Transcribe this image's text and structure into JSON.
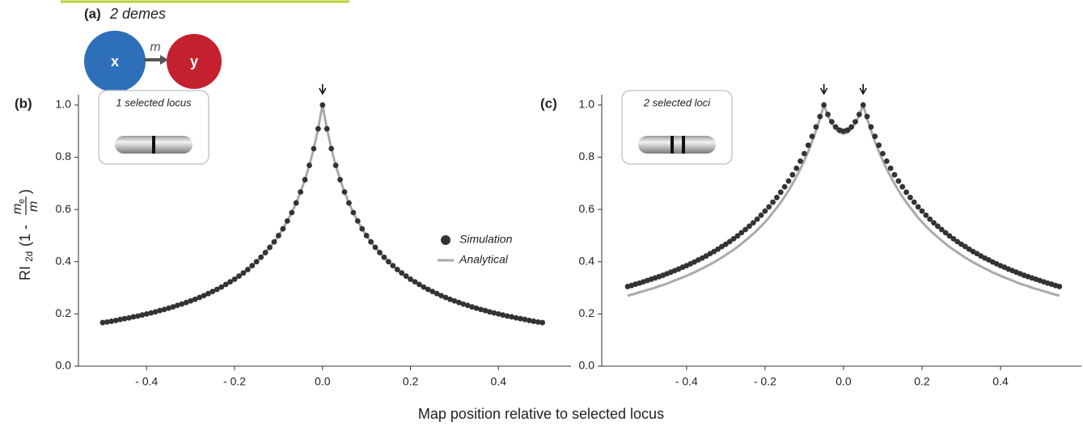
{
  "panel_a": {
    "label": "(a)",
    "title": "2 demes",
    "nodes": [
      "x",
      "y"
    ],
    "edge_label": "m"
  },
  "x_label": "Map position relative to selected locus",
  "chart_data": [
    {
      "type": "line",
      "panel_label": "(b)",
      "inset_label": "1 selected locus",
      "selected_loci": [
        0
      ],
      "y_label": {
        "main": "RI",
        "sub": "2d",
        "open": "(1 -",
        "num": "m",
        "num_sub": "e",
        "den": "m",
        "close": ")"
      },
      "legend": "right",
      "x": [
        -0.5,
        -0.49,
        -0.48,
        -0.47,
        -0.46,
        -0.45,
        -0.44,
        -0.43,
        -0.42,
        -0.41,
        -0.4,
        -0.39,
        -0.38,
        -0.37,
        -0.36,
        -0.35,
        -0.34,
        -0.33,
        -0.32,
        -0.31,
        -0.3,
        -0.29,
        -0.28,
        -0.27,
        -0.26,
        -0.25,
        -0.24,
        -0.23,
        -0.22,
        -0.21,
        -0.2,
        -0.19,
        -0.18,
        -0.17,
        -0.16,
        -0.15,
        -0.14,
        -0.13,
        -0.12,
        -0.11,
        -0.1,
        -0.09,
        -0.08,
        -0.07,
        -0.06,
        -0.05,
        -0.04,
        -0.03,
        -0.02,
        -0.01,
        0,
        0.01,
        0.02,
        0.03,
        0.04,
        0.05,
        0.06,
        0.07,
        0.08,
        0.09,
        0.1,
        0.11,
        0.12,
        0.13,
        0.14,
        0.15,
        0.16,
        0.17,
        0.18,
        0.19,
        0.2,
        0.21,
        0.22,
        0.23,
        0.24,
        0.25,
        0.26,
        0.27,
        0.28,
        0.29,
        0.3,
        0.31,
        0.32,
        0.33,
        0.34,
        0.35,
        0.36,
        0.37,
        0.38,
        0.39,
        0.4,
        0.41,
        0.42,
        0.43,
        0.44,
        0.45,
        0.46,
        0.47,
        0.48,
        0.49,
        0.5
      ],
      "series": [
        {
          "name": "Simulation",
          "color": "#333333",
          "style": "markers",
          "values": [
            0.167,
            0.169,
            0.172,
            0.175,
            0.179,
            0.182,
            0.185,
            0.189,
            0.192,
            0.196,
            0.2,
            0.204,
            0.208,
            0.213,
            0.217,
            0.222,
            0.227,
            0.233,
            0.238,
            0.244,
            0.25,
            0.256,
            0.263,
            0.27,
            0.278,
            0.286,
            0.294,
            0.303,
            0.313,
            0.323,
            0.333,
            0.345,
            0.357,
            0.37,
            0.385,
            0.4,
            0.417,
            0.435,
            0.455,
            0.476,
            0.5,
            0.526,
            0.556,
            0.588,
            0.625,
            0.667,
            0.714,
            0.769,
            0.833,
            0.909,
            1,
            0.909,
            0.833,
            0.769,
            0.714,
            0.667,
            0.625,
            0.588,
            0.556,
            0.526,
            0.5,
            0.476,
            0.455,
            0.435,
            0.417,
            0.4,
            0.385,
            0.37,
            0.357,
            0.345,
            0.333,
            0.323,
            0.313,
            0.303,
            0.294,
            0.286,
            0.278,
            0.27,
            0.263,
            0.256,
            0.25,
            0.244,
            0.238,
            0.233,
            0.227,
            0.222,
            0.217,
            0.213,
            0.208,
            0.204,
            0.2,
            0.196,
            0.192,
            0.189,
            0.185,
            0.182,
            0.179,
            0.175,
            0.172,
            0.169,
            0.167
          ]
        },
        {
          "name": "Analytical",
          "color": "#aaaaaa",
          "style": "line",
          "values": [
            0.167,
            0.169,
            0.172,
            0.175,
            0.179,
            0.182,
            0.185,
            0.189,
            0.192,
            0.196,
            0.2,
            0.204,
            0.208,
            0.213,
            0.217,
            0.222,
            0.227,
            0.233,
            0.238,
            0.244,
            0.25,
            0.256,
            0.263,
            0.27,
            0.278,
            0.286,
            0.294,
            0.303,
            0.313,
            0.323,
            0.333,
            0.345,
            0.357,
            0.37,
            0.385,
            0.4,
            0.417,
            0.435,
            0.455,
            0.476,
            0.5,
            0.526,
            0.556,
            0.588,
            0.625,
            0.667,
            0.714,
            0.769,
            0.833,
            0.909,
            1,
            0.909,
            0.833,
            0.769,
            0.714,
            0.667,
            0.625,
            0.588,
            0.556,
            0.526,
            0.5,
            0.476,
            0.455,
            0.435,
            0.417,
            0.4,
            0.385,
            0.37,
            0.357,
            0.345,
            0.333,
            0.323,
            0.313,
            0.303,
            0.294,
            0.286,
            0.278,
            0.27,
            0.263,
            0.256,
            0.25,
            0.244,
            0.238,
            0.233,
            0.227,
            0.222,
            0.217,
            0.213,
            0.208,
            0.204,
            0.2,
            0.196,
            0.192,
            0.189,
            0.185,
            0.182,
            0.179,
            0.175,
            0.172,
            0.169,
            0.167
          ]
        }
      ],
      "xlim": [
        -0.555,
        0.565
      ],
      "xticks": [
        {
          "value": -0.4,
          "label": "- 0.4"
        },
        {
          "value": -0.2,
          "label": "- 0.2"
        },
        {
          "value": 0,
          "label": "0.0"
        },
        0.2,
        0.4
      ],
      "ylim": [
        0,
        1.04
      ],
      "yticks": [
        {
          "value": 0,
          "label": "0.0"
        },
        0.2,
        0.4,
        0.6,
        0.8,
        {
          "value": 1,
          "label": "1.0"
        }
      ]
    },
    {
      "type": "line",
      "panel_label": "(c)",
      "inset_label": "2 selected loci",
      "selected_loci": [
        -0.05,
        0.05
      ],
      "x": [
        -0.55,
        -0.54,
        -0.53,
        -0.52,
        -0.51,
        -0.5,
        -0.49,
        -0.48,
        -0.47,
        -0.46,
        -0.45,
        -0.44,
        -0.43,
        -0.42,
        -0.41,
        -0.4,
        -0.39,
        -0.38,
        -0.37,
        -0.36,
        -0.35,
        -0.34,
        -0.33,
        -0.32,
        -0.31,
        -0.3,
        -0.29,
        -0.28,
        -0.27,
        -0.26,
        -0.25,
        -0.24,
        -0.23,
        -0.22,
        -0.21,
        -0.2,
        -0.19,
        -0.18,
        -0.17,
        -0.16,
        -0.15,
        -0.14,
        -0.13,
        -0.12,
        -0.11,
        -0.1,
        -0.09,
        -0.08,
        -0.07,
        -0.06,
        -0.05,
        -0.04,
        -0.03,
        -0.02,
        -0.01,
        0,
        0.01,
        0.02,
        0.03,
        0.04,
        0.05,
        0.06,
        0.07,
        0.08,
        0.09,
        0.1,
        0.11,
        0.12,
        0.13,
        0.14,
        0.15,
        0.16,
        0.17,
        0.18,
        0.19,
        0.2,
        0.21,
        0.22,
        0.23,
        0.24,
        0.25,
        0.26,
        0.27,
        0.28,
        0.29,
        0.3,
        0.31,
        0.32,
        0.33,
        0.34,
        0.35,
        0.36,
        0.37,
        0.38,
        0.39,
        0.4,
        0.41,
        0.42,
        0.43,
        0.44,
        0.45,
        0.46,
        0.47,
        0.48,
        0.49,
        0.5,
        0.51,
        0.52,
        0.53,
        0.54,
        0.55
      ],
      "series": [
        {
          "color": "#333333",
          "style": "markers",
          "values": [
            0.305,
            0.309,
            0.314,
            0.318,
            0.323,
            0.328,
            0.333,
            0.338,
            0.343,
            0.348,
            0.354,
            0.36,
            0.366,
            0.372,
            0.379,
            0.385,
            0.392,
            0.399,
            0.407,
            0.414,
            0.422,
            0.431,
            0.439,
            0.448,
            0.458,
            0.467,
            0.477,
            0.488,
            0.499,
            0.511,
            0.523,
            0.536,
            0.549,
            0.563,
            0.578,
            0.594,
            0.61,
            0.628,
            0.646,
            0.666,
            0.687,
            0.709,
            0.733,
            0.758,
            0.785,
            0.814,
            0.846,
            0.88,
            0.916,
            0.956,
            1,
            0.964,
            0.936,
            0.916,
            0.904,
            0.9,
            0.904,
            0.916,
            0.936,
            0.964,
            1,
            0.956,
            0.916,
            0.88,
            0.846,
            0.814,
            0.785,
            0.758,
            0.733,
            0.709,
            0.687,
            0.666,
            0.646,
            0.628,
            0.61,
            0.594,
            0.578,
            0.563,
            0.549,
            0.536,
            0.523,
            0.511,
            0.499,
            0.488,
            0.477,
            0.467,
            0.458,
            0.448,
            0.439,
            0.431,
            0.422,
            0.414,
            0.407,
            0.399,
            0.392,
            0.385,
            0.379,
            0.372,
            0.366,
            0.36,
            0.354,
            0.348,
            0.343,
            0.338,
            0.333,
            0.328,
            0.323,
            0.318,
            0.314,
            0.309,
            0.305
          ]
        },
        {
          "color": "#aaaaaa",
          "style": "line",
          "values": [
            0.27,
            0.274,
            0.278,
            0.283,
            0.287,
            0.292,
            0.296,
            0.301,
            0.306,
            0.311,
            0.316,
            0.322,
            0.328,
            0.334,
            0.34,
            0.346,
            0.353,
            0.359,
            0.367,
            0.374,
            0.382,
            0.39,
            0.398,
            0.407,
            0.416,
            0.426,
            0.436,
            0.446,
            0.457,
            0.469,
            0.481,
            0.494,
            0.507,
            0.521,
            0.536,
            0.552,
            0.569,
            0.588,
            0.607,
            0.627,
            0.649,
            0.673,
            0.698,
            0.726,
            0.755,
            0.787,
            0.822,
            0.861,
            0.903,
            0.949,
            1,
            0.96,
            0.93,
            0.908,
            0.894,
            0.89,
            0.894,
            0.908,
            0.93,
            0.96,
            1,
            0.949,
            0.903,
            0.861,
            0.822,
            0.787,
            0.755,
            0.726,
            0.698,
            0.673,
            0.649,
            0.627,
            0.607,
            0.588,
            0.569,
            0.552,
            0.536,
            0.521,
            0.507,
            0.494,
            0.481,
            0.469,
            0.457,
            0.446,
            0.436,
            0.426,
            0.416,
            0.407,
            0.398,
            0.39,
            0.382,
            0.374,
            0.367,
            0.359,
            0.353,
            0.346,
            0.34,
            0.334,
            0.328,
            0.322,
            0.316,
            0.311,
            0.306,
            0.301,
            0.296,
            0.292,
            0.287,
            0.283,
            0.278,
            0.274,
            0.27
          ]
        }
      ],
      "xlim": [
        -0.616,
        0.606
      ],
      "xticks": [
        {
          "value": -0.4,
          "label": "- 0.4"
        },
        {
          "value": -0.2,
          "label": "- 0.2"
        },
        {
          "value": 0,
          "label": "0.0"
        },
        0.2,
        0.4
      ],
      "ylim": [
        0,
        1.04
      ],
      "yticks": [
        {
          "value": 0,
          "label": "0.0"
        },
        0.2,
        0.4,
        0.6,
        0.8,
        {
          "value": 1,
          "label": "1.0"
        }
      ]
    }
  ]
}
